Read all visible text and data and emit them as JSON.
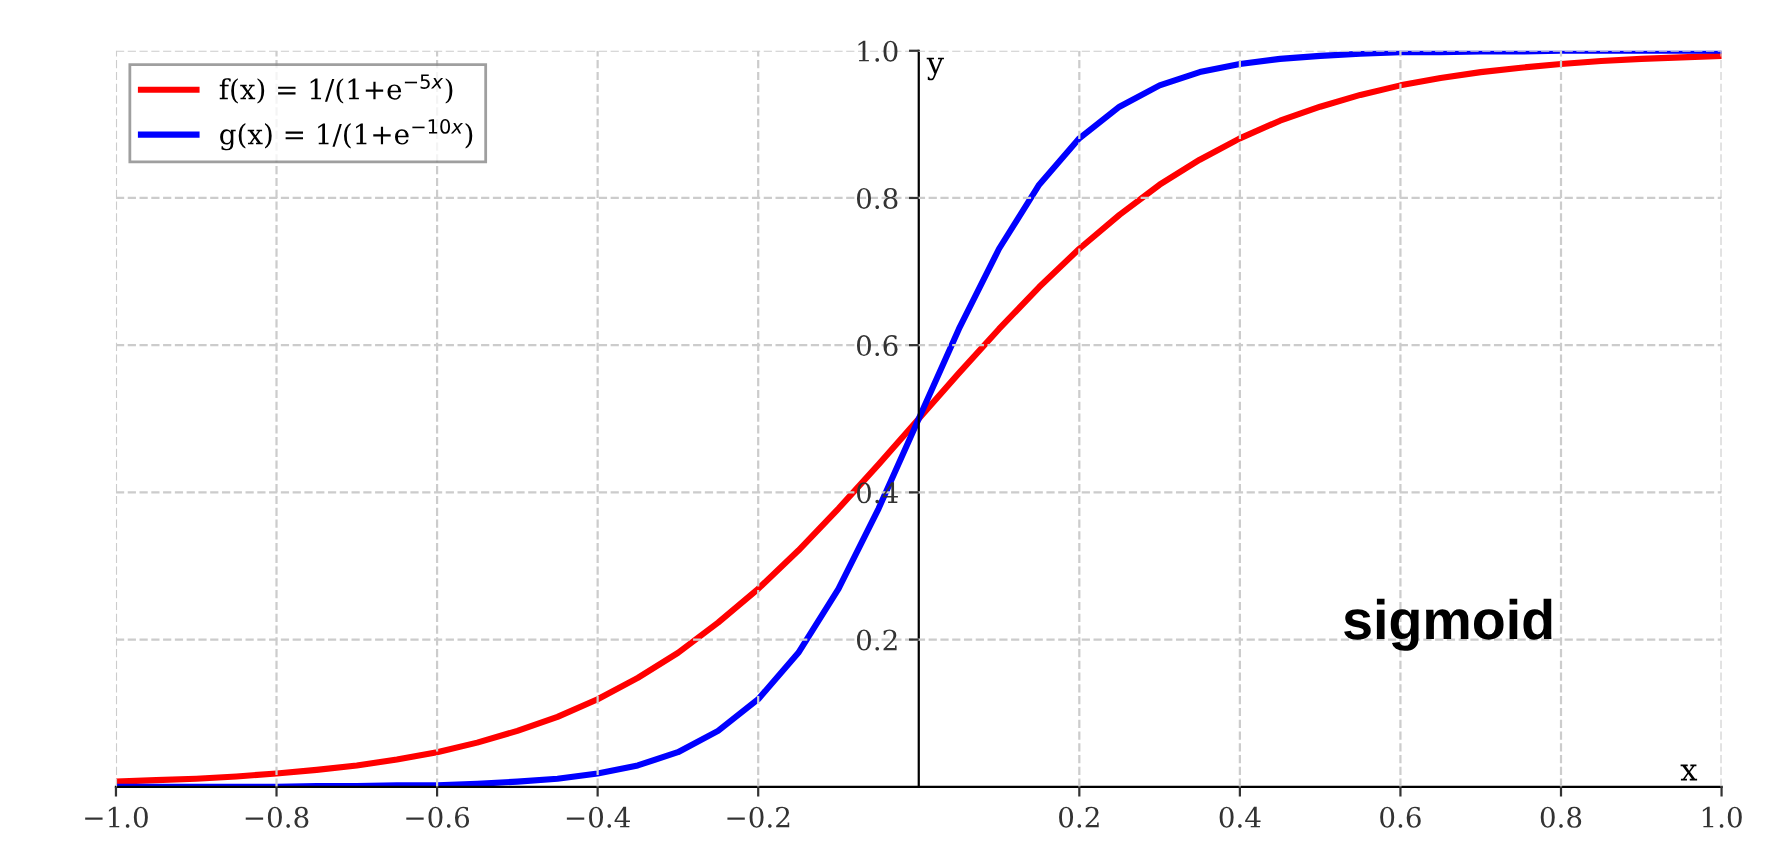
{
  "chart_data": {
    "type": "line",
    "xlabel": "x",
    "ylabel": "y",
    "x": [
      -1.0,
      -0.95,
      -0.9,
      -0.85,
      -0.8,
      -0.75,
      -0.7,
      -0.65,
      -0.6,
      -0.55,
      -0.5,
      -0.45,
      -0.4,
      -0.35,
      -0.3,
      -0.25,
      -0.2,
      -0.15,
      -0.1,
      -0.05,
      0.0,
      0.05,
      0.1,
      0.15,
      0.2,
      0.25,
      0.3,
      0.35,
      0.4,
      0.45,
      0.5,
      0.55,
      0.6,
      0.65,
      0.7,
      0.75,
      0.8,
      0.85,
      0.9,
      0.95,
      1.0
    ],
    "series": [
      {
        "name": "f(x) = 1/(1+e$^{−5x}$)",
        "color": "#ff0000",
        "values": [
          0.007,
          0.009,
          0.011,
          0.014,
          0.018,
          0.023,
          0.029,
          0.037,
          0.047,
          0.06,
          0.076,
          0.095,
          0.119,
          0.148,
          0.182,
          0.223,
          0.269,
          0.321,
          0.378,
          0.438,
          0.5,
          0.562,
          0.622,
          0.679,
          0.731,
          0.777,
          0.818,
          0.852,
          0.881,
          0.905,
          0.924,
          0.94,
          0.953,
          0.963,
          0.971,
          0.977,
          0.982,
          0.986,
          0.989,
          0.991,
          0.993
        ]
      },
      {
        "name": "g(x) = 1/(1+e$^{−10x}$)",
        "color": "#0000ff",
        "values": [
          0.0,
          0.0,
          0.0,
          0.0,
          0.0,
          0.001,
          0.001,
          0.002,
          0.002,
          0.004,
          0.007,
          0.011,
          0.018,
          0.029,
          0.047,
          0.076,
          0.119,
          0.182,
          0.269,
          0.378,
          0.5,
          0.622,
          0.731,
          0.818,
          0.881,
          0.924,
          0.953,
          0.971,
          0.982,
          0.989,
          0.993,
          0.996,
          0.998,
          0.998,
          0.999,
          0.999,
          1.0,
          1.0,
          1.0,
          1.0,
          1.0
        ]
      }
    ],
    "xlim": [
      -1.0,
      1.0
    ],
    "ylim": [
      0,
      1.0
    ],
    "xticks": [
      {
        "value": -1.0,
        "label": "−1.0"
      },
      {
        "value": -0.8,
        "label": "−0.8"
      },
      {
        "value": -0.6,
        "label": "−0.6"
      },
      {
        "value": -0.4,
        "label": "−0.4"
      },
      {
        "value": -0.2,
        "label": "−0.2"
      },
      0.2,
      0.4,
      0.6,
      0.8,
      {
        "value": 1.0,
        "label": "1.0"
      }
    ],
    "yticks": [
      0.2,
      0.4,
      0.6,
      0.8,
      {
        "value": 1.0,
        "label": "1.0"
      }
    ],
    "annotations": [
      "sigmoid"
    ],
    "grid": true,
    "legend": "top left",
    "line_style": "solid",
    "marker": "none"
  }
}
